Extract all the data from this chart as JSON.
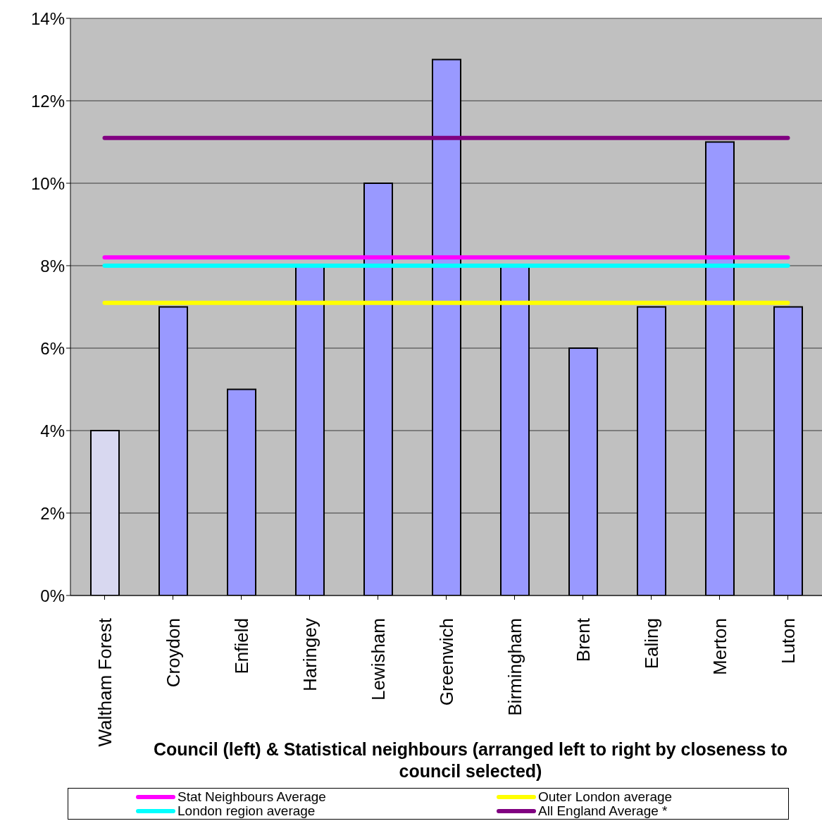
{
  "chart_data": {
    "type": "bar",
    "xlabel": "Council  (left) & Statistical neighbours (arranged left to right by closeness to council selected)",
    "categories": [
      "Waltham Forest",
      "Croydon",
      "Enfield",
      "Haringey",
      "Lewisham",
      "Greenwich",
      "Birmingham",
      "Brent",
      "Ealing",
      "Merton",
      "Luton"
    ],
    "series": [
      {
        "values": [
          4,
          7,
          5,
          8,
          10,
          13,
          8,
          6,
          7,
          11,
          7
        ],
        "colors": [
          "#d8d8f0",
          "#9999ff",
          "#9999ff",
          "#9999ff",
          "#9999ff",
          "#9999ff",
          "#9999ff",
          "#9999ff",
          "#9999ff",
          "#9999ff",
          "#9999ff"
        ]
      },
      {
        "type": "line",
        "name": "Stat Neighbours Average",
        "color": "#ff00ff",
        "values": [
          8.2,
          8.2,
          8.2,
          8.2,
          8.2,
          8.2,
          8.2,
          8.2,
          8.2,
          8.2,
          8.2
        ]
      },
      {
        "type": "line",
        "name": "London region average",
        "color": "#00ffff",
        "values": [
          8.0,
          8.0,
          8.0,
          8.0,
          8.0,
          8.0,
          8.0,
          8.0,
          8.0,
          8.0,
          8.0
        ]
      },
      {
        "type": "line",
        "name": "Outer London average",
        "color": "#ffff00",
        "values": [
          7.1,
          7.1,
          7.1,
          7.1,
          7.1,
          7.1,
          7.1,
          7.1,
          7.1,
          7.1,
          7.1
        ]
      },
      {
        "type": "line",
        "name": "All England Average *",
        "color": "#800080",
        "values": [
          11.1,
          11.1,
          11.1,
          11.1,
          11.1,
          11.1,
          11.1,
          11.1,
          11.1,
          11.1,
          11.1
        ]
      }
    ],
    "ylim": [
      0,
      14
    ],
    "yticks": [
      {
        "value": 0,
        "label": "0%"
      },
      {
        "value": 2,
        "label": "2%"
      },
      {
        "value": 4,
        "label": "4%"
      },
      {
        "value": 6,
        "label": "6%"
      },
      {
        "value": 8,
        "label": "8%"
      },
      {
        "value": 10,
        "label": "10%"
      },
      {
        "value": 12,
        "label": "12%"
      },
      {
        "value": 14,
        "label": "14%"
      }
    ],
    "grid": "y",
    "legend": "bottom"
  }
}
